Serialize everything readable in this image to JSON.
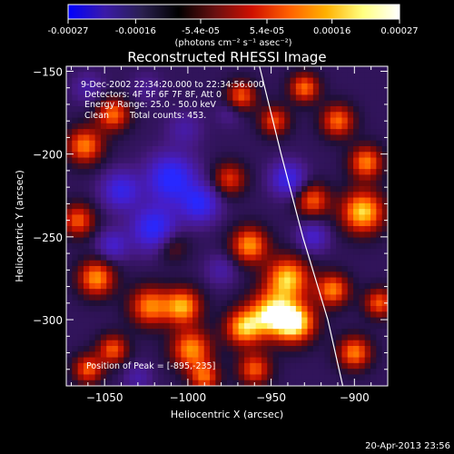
{
  "colorbar": {
    "tick_labels": [
      "-0.00027",
      "-0.00016",
      "-5.4e-05",
      "5.4e-05",
      "0.00016",
      "0.00027"
    ],
    "tick_values": [
      -0.00027,
      -0.00016,
      -5.4e-05,
      5.4e-05,
      0.00016,
      0.00027
    ],
    "range": [
      -0.00027,
      0.00027
    ],
    "unit_label": "(photons cm⁻² s⁻¹ asec⁻²)",
    "colors": [
      "#0000ff",
      "#3a1aa8",
      "#2a2050",
      "#000000",
      "#6a1010",
      "#d01000",
      "#ff6000",
      "#ffb000",
      "#ffff80",
      "#ffffff"
    ]
  },
  "chart_data": {
    "type": "heatmap",
    "title": "Reconstructed RHESSI Image",
    "xlabel": "Heliocentric X (arcsec)",
    "ylabel": "Heliocentric Y (arcsec)",
    "xlim": [
      -1073,
      -880
    ],
    "ylim": [
      -340,
      -147
    ],
    "x_ticks": [
      -1050,
      -1000,
      -950,
      -900
    ],
    "y_ticks": [
      -150,
      -200,
      -250,
      -300
    ],
    "x_tick_labels": [
      "−1050",
      "−1000",
      "−950",
      "−900"
    ],
    "y_tick_labels": [
      "−150",
      "−200",
      "−250",
      "−300"
    ],
    "peak_position": [
      -895,
      -235
    ],
    "limb_points": [
      [
        -957,
        -147
      ],
      [
        -944,
        -200
      ],
      [
        -931,
        -250
      ],
      [
        -916,
        -300
      ],
      [
        -907,
        -340
      ]
    ],
    "blobs": [
      {
        "x": -1045,
        "y": -176,
        "v": 0.75,
        "r": 10
      },
      {
        "x": -1062,
        "y": -195,
        "v": 0.8,
        "r": 11
      },
      {
        "x": -1066,
        "y": -240,
        "v": 0.7,
        "r": 10
      },
      {
        "x": -1055,
        "y": -275,
        "v": 0.85,
        "r": 11
      },
      {
        "x": -1060,
        "y": -330,
        "v": 0.7,
        "r": 9
      },
      {
        "x": -1023,
        "y": -292,
        "v": 0.8,
        "r": 12
      },
      {
        "x": -1003,
        "y": -292,
        "v": 0.9,
        "r": 11
      },
      {
        "x": -1010,
        "y": -255,
        "v": 0.4,
        "r": 10
      },
      {
        "x": -998,
        "y": -318,
        "v": 0.85,
        "r": 12
      },
      {
        "x": -990,
        "y": -335,
        "v": 0.7,
        "r": 9
      },
      {
        "x": -1045,
        "y": -318,
        "v": 0.7,
        "r": 9
      },
      {
        "x": -968,
        "y": -165,
        "v": 0.7,
        "r": 9
      },
      {
        "x": -948,
        "y": -180,
        "v": 0.65,
        "r": 9
      },
      {
        "x": -930,
        "y": -160,
        "v": 0.75,
        "r": 9
      },
      {
        "x": -975,
        "y": -215,
        "v": 0.6,
        "r": 10
      },
      {
        "x": -963,
        "y": -255,
        "v": 0.85,
        "r": 11
      },
      {
        "x": -940,
        "y": -275,
        "v": 0.95,
        "r": 13
      },
      {
        "x": -950,
        "y": -297,
        "v": 1.0,
        "r": 14
      },
      {
        "x": -935,
        "y": -302,
        "v": 1.0,
        "r": 12
      },
      {
        "x": -967,
        "y": -305,
        "v": 0.85,
        "r": 11
      },
      {
        "x": -960,
        "y": -330,
        "v": 0.7,
        "r": 10
      },
      {
        "x": -913,
        "y": -282,
        "v": 0.8,
        "r": 10
      },
      {
        "x": -895,
        "y": -235,
        "v": 1.0,
        "r": 13
      },
      {
        "x": -893,
        "y": -205,
        "v": 0.8,
        "r": 10
      },
      {
        "x": -910,
        "y": -180,
        "v": 0.75,
        "r": 10
      },
      {
        "x": -925,
        "y": -228,
        "v": 0.7,
        "r": 10
      },
      {
        "x": -900,
        "y": -320,
        "v": 0.8,
        "r": 10
      },
      {
        "x": -885,
        "y": -290,
        "v": 0.7,
        "r": 9
      },
      {
        "x": -1025,
        "y": -160,
        "v": -0.2,
        "r": 9
      },
      {
        "x": -1010,
        "y": -215,
        "v": -0.95,
        "r": 14
      },
      {
        "x": -1020,
        "y": -245,
        "v": -0.9,
        "r": 13
      },
      {
        "x": -1040,
        "y": -222,
        "v": -0.7,
        "r": 11
      },
      {
        "x": -993,
        "y": -230,
        "v": -0.8,
        "r": 11
      },
      {
        "x": -1045,
        "y": -255,
        "v": -0.5,
        "r": 9
      },
      {
        "x": -940,
        "y": -215,
        "v": -0.7,
        "r": 10
      },
      {
        "x": -925,
        "y": -250,
        "v": -0.5,
        "r": 9
      },
      {
        "x": -1002,
        "y": -185,
        "v": -0.3,
        "r": 10
      },
      {
        "x": -980,
        "y": -270,
        "v": -0.3,
        "r": 9
      },
      {
        "x": -975,
        "y": -175,
        "v": -0.2,
        "r": 8
      },
      {
        "x": -1060,
        "y": -160,
        "v": -0.3,
        "r": 9
      },
      {
        "x": -1030,
        "y": -335,
        "v": -0.3,
        "r": 8
      }
    ]
  },
  "annotations": {
    "time_range": "9-Dec-2002 22:34:20.000 to 22:34:56.000",
    "detectors": "Detectors: 4F 5F 6F 7F 8F, Att 0",
    "energy_range": "Energy Range: 25.0 - 50.0 keV",
    "clean_label": "Clean",
    "total_counts": "Total counts: 453.",
    "peak_label": "Position of Peak = [-895,-235]"
  },
  "footer": {
    "timestamp": "20-Apr-2013 23:56"
  }
}
